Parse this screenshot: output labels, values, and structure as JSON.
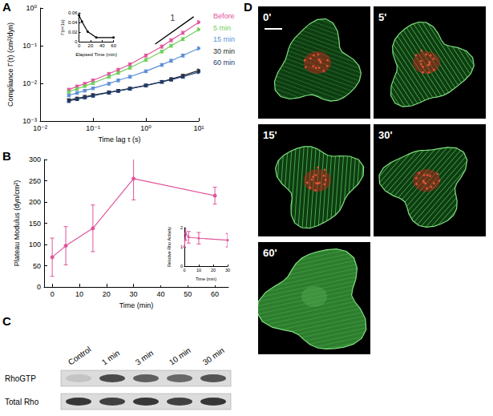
{
  "panel_labels": [
    "A",
    "B",
    "C",
    "D"
  ],
  "chart_data": [
    {
      "type": "line",
      "log": true,
      "xlabel": "Time lag τ (s)",
      "ylabel": "Compliance Γ(τ) (cm²/dyn)",
      "xlim": [
        0.01,
        10
      ],
      "ylim": [
        0.001,
        1
      ],
      "xticks": [
        {
          "value": 0.01,
          "label": "10⁻²"
        },
        {
          "value": 0.1,
          "label": "10⁻¹"
        },
        {
          "value": 1,
          "label": "10⁰"
        },
        {
          "value": 10,
          "label": "10¹"
        }
      ],
      "yticks": [
        {
          "value": 0.001,
          "label": "10⁻³"
        },
        {
          "value": 0.01,
          "label": "10⁻²"
        },
        {
          "value": 0.1,
          "label": "10⁻¹"
        },
        {
          "value": 1,
          "label": "10⁰"
        }
      ],
      "legend": "right",
      "marker": "circle",
      "x": [
        0.035,
        0.05,
        0.07,
        0.1,
        0.2,
        0.3,
        0.5,
        1,
        2,
        3,
        5,
        10
      ],
      "series": [
        {
          "name": "Before",
          "color": "#e0559b",
          "values": [
            0.0068,
            0.0083,
            0.0098,
            0.012,
            0.018,
            0.023,
            0.032,
            0.055,
            0.095,
            0.14,
            0.22,
            0.42
          ],
          "errors": [
            0.0006,
            0.0007,
            0.0008,
            0.001,
            0.0015,
            0.002,
            0.003,
            0.005,
            0.009,
            0.013,
            0.02,
            0.04
          ]
        },
        {
          "name": "5 min",
          "color": "#6fcf5a",
          "values": [
            0.006,
            0.0072,
            0.0085,
            0.0102,
            0.015,
            0.019,
            0.026,
            0.042,
            0.07,
            0.1,
            0.15,
            0.27
          ],
          "errors": [
            0.0005,
            0.0006,
            0.0007,
            0.0009,
            0.0013,
            0.0016,
            0.0022,
            0.0036,
            0.006,
            0.009,
            0.013,
            0.024
          ]
        },
        {
          "name": "15 min",
          "color": "#5b8fd6",
          "values": [
            0.0048,
            0.0056,
            0.0064,
            0.0074,
            0.0098,
            0.012,
            0.015,
            0.021,
            0.031,
            0.04,
            0.055,
            0.085
          ],
          "errors": [
            0.0004,
            0.0005,
            0.0005,
            0.0006,
            0.0008,
            0.001,
            0.0013,
            0.0018,
            0.0027,
            0.0035,
            0.005,
            0.008
          ]
        },
        {
          "name": "30 min",
          "color": "#2b2b2b",
          "values": [
            0.0036,
            0.004,
            0.0044,
            0.0049,
            0.0058,
            0.0064,
            0.0073,
            0.0088,
            0.011,
            0.013,
            0.016,
            0.022
          ],
          "errors": [
            0.0003,
            0.0003,
            0.0004,
            0.0004,
            0.0005,
            0.0005,
            0.0006,
            0.0007,
            0.0009,
            0.0011,
            0.0014,
            0.002
          ]
        },
        {
          "name": "60 min",
          "color": "#1d3a6e",
          "values": [
            0.0034,
            0.0038,
            0.0042,
            0.0047,
            0.0057,
            0.0063,
            0.0072,
            0.0088,
            0.011,
            0.0125,
            0.015,
            0.02
          ],
          "errors": [
            0.0003,
            0.0003,
            0.0003,
            0.0004,
            0.0005,
            0.0005,
            0.0006,
            0.0007,
            0.0009,
            0.001,
            0.0013,
            0.0018
          ]
        }
      ],
      "reference_line": {
        "x": [
          1.5,
          8
        ],
        "y": [
          0.11,
          0.587
        ]
      },
      "annotations": [
        {
          "text": "1",
          "x": 3.2,
          "y": 0.55
        }
      ]
    },
    {
      "type": "line",
      "xlabel": "Elapsed Time (min)",
      "ylabel": "Γ(τ=1s)",
      "xlim": [
        0,
        60
      ],
      "ylim": [
        0,
        0.06
      ],
      "xticks": [
        0,
        20,
        40,
        60
      ],
      "yticks": [
        0,
        0.02,
        0.04,
        0.06
      ],
      "x": [
        0,
        5,
        15,
        30,
        60
      ],
      "values": [
        0.055,
        0.042,
        0.021,
        0.0088,
        0.0088
      ],
      "color": "#000000",
      "marker": "circle"
    },
    {
      "type": "line",
      "xlabel": "Time (min)",
      "ylabel": "Plateau Modulus (dyn/cm²)",
      "xlim": [
        -3,
        65
      ],
      "ylim": [
        0,
        300
      ],
      "xticks": [
        0,
        10,
        20,
        30,
        40,
        50,
        60
      ],
      "yticks": [
        0,
        50,
        100,
        150,
        200,
        250,
        300
      ],
      "x": [
        0,
        5,
        15,
        30,
        60
      ],
      "values": [
        70,
        97,
        138,
        255,
        215
      ],
      "errors": [
        45,
        45,
        55,
        50,
        20
      ],
      "color": "#e0559b",
      "marker": "circle"
    },
    {
      "type": "line",
      "xlabel": "Time (min)",
      "ylabel": "Relative Rho Activity",
      "xlim": [
        0,
        30
      ],
      "ylim": [
        0,
        2
      ],
      "xticks": [
        0,
        10,
        20,
        30
      ],
      "yticks": [
        0,
        1,
        2
      ],
      "x": [
        0,
        1,
        3,
        10,
        30
      ],
      "values": [
        1,
        1.7,
        1.5,
        1.45,
        1.35
      ],
      "errors": [
        0,
        0.35,
        0.3,
        0.3,
        0.35
      ],
      "color": "#e0559b",
      "marker": "circle"
    }
  ],
  "blot": {
    "lanes": [
      "Control",
      "1 min",
      "3 min",
      "10 min",
      "30 min"
    ],
    "rows": [
      {
        "label": "RhoGTP",
        "band_intensity": [
          0.12,
          0.75,
          0.65,
          0.6,
          0.7
        ]
      },
      {
        "label": "Total Rho",
        "band_intensity": [
          0.85,
          0.8,
          0.85,
          0.8,
          0.85
        ]
      }
    ]
  },
  "micrographs": {
    "labels": [
      "0'",
      "5'",
      "15'",
      "30'",
      "60'"
    ]
  }
}
